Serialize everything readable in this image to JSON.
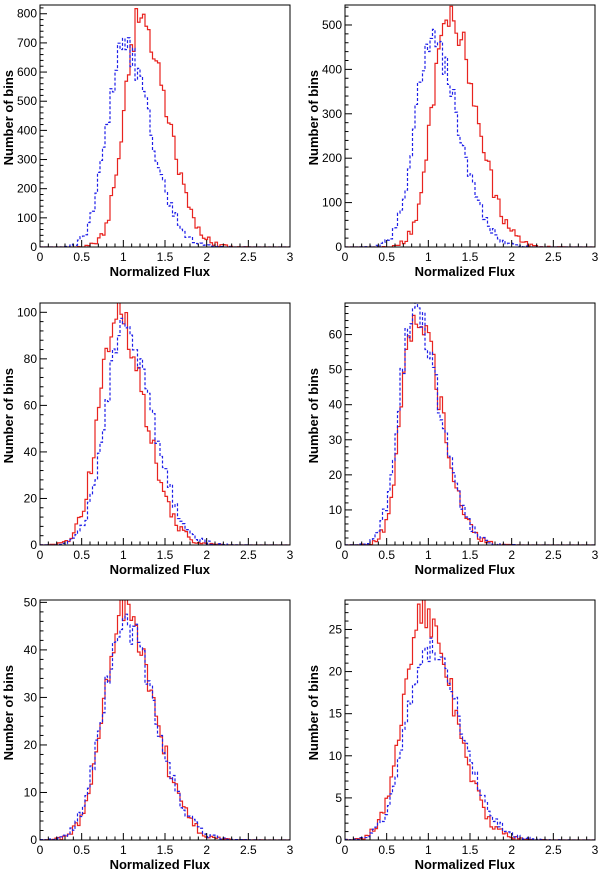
{
  "chart_data": [
    {
      "type": "bar",
      "title": "",
      "xlabel": "Normalized Flux",
      "ylabel": "Number of bins",
      "xlim": [
        0,
        3
      ],
      "ylim": [
        0,
        830
      ],
      "xticks": [
        0,
        0.5,
        1,
        1.5,
        2,
        2.5,
        3
      ],
      "xtick_labels": [
        "0",
        "0.5",
        "1",
        "1.5",
        "2",
        "2.5",
        "3"
      ],
      "yticks": [
        0,
        100,
        200,
        300,
        400,
        500,
        600,
        700,
        800
      ],
      "ytick_labels": [
        "0",
        "100",
        "200",
        "300",
        "400",
        "500",
        "600",
        "700",
        "800"
      ],
      "bin_width": 0.03,
      "series": [
        {
          "name": "solid",
          "color": "#e8231f",
          "dash": "",
          "peak": 1.2,
          "peakValue": 790,
          "sigma": 0.19,
          "tail": 0.35
        },
        {
          "name": "dashed",
          "color": "#1f1fe8",
          "dash": "3,2",
          "peak": 1.0,
          "peakValue": 680,
          "sigma": 0.2,
          "tail": 0.35
        }
      ]
    },
    {
      "type": "bar",
      "title": "",
      "xlabel": "Normalized Flux",
      "ylabel": "Number of bins",
      "xlim": [
        0,
        3
      ],
      "ylim": [
        0,
        545
      ],
      "xticks": [
        0,
        0.5,
        1,
        1.5,
        2,
        2.5,
        3
      ],
      "xtick_labels": [
        "0",
        "0.5",
        "1",
        "1.5",
        "2",
        "2.5",
        "3"
      ],
      "yticks": [
        0,
        100,
        200,
        300,
        400,
        500
      ],
      "ytick_labels": [
        "0",
        "100",
        "200",
        "300",
        "400",
        "500"
      ],
      "bin_width": 0.03,
      "series": [
        {
          "name": "solid",
          "color": "#e8231f",
          "dash": "",
          "peak": 1.25,
          "peakValue": 525,
          "sigma": 0.2,
          "tail": 0.35
        },
        {
          "name": "dashed",
          "color": "#1f1fe8",
          "dash": "3,2",
          "peak": 1.04,
          "peakValue": 465,
          "sigma": 0.2,
          "tail": 0.35
        }
      ]
    },
    {
      "type": "bar",
      "title": "",
      "xlabel": "Normalized Flux",
      "ylabel": "Number of bins",
      "xlim": [
        0,
        3
      ],
      "ylim": [
        0,
        104
      ],
      "xticks": [
        0,
        0.5,
        1,
        1.5,
        2,
        2.5,
        3
      ],
      "xtick_labels": [
        "0",
        "0.5",
        "1",
        "1.5",
        "2",
        "2.5",
        "3"
      ],
      "yticks": [
        0,
        20,
        40,
        60,
        80,
        100
      ],
      "ytick_labels": [
        "0",
        "20",
        "40",
        "60",
        "80",
        "100"
      ],
      "bin_width": 0.03,
      "series": [
        {
          "name": "solid",
          "color": "#e8231f",
          "dash": "",
          "peak": 0.92,
          "peakValue": 100,
          "sigma": 0.21,
          "tail": 0.35
        },
        {
          "name": "dashed",
          "color": "#1f1fe8",
          "dash": "3,2",
          "peak": 1.0,
          "peakValue": 92,
          "sigma": 0.22,
          "tail": 0.35
        }
      ]
    },
    {
      "type": "bar",
      "title": "",
      "xlabel": "Normalized Flux",
      "ylabel": "Number of bins",
      "xlim": [
        0,
        3
      ],
      "ylim": [
        0,
        69
      ],
      "xticks": [
        0,
        0.5,
        1,
        1.5,
        2,
        2.5,
        3
      ],
      "xtick_labels": [
        "0",
        "0.5",
        "1",
        "1.5",
        "2",
        "2.5",
        "3"
      ],
      "yticks": [
        0,
        10,
        20,
        30,
        40,
        50,
        60
      ],
      "ytick_labels": [
        "0",
        "10",
        "20",
        "30",
        "40",
        "50",
        "60"
      ],
      "bin_width": 0.03,
      "series": [
        {
          "name": "solid",
          "color": "#e8231f",
          "dash": "",
          "peak": 0.85,
          "peakValue": 66,
          "sigma": 0.17,
          "tail": 0.35
        },
        {
          "name": "dashed",
          "color": "#1f1fe8",
          "dash": "3,2",
          "peak": 0.83,
          "peakValue": 67,
          "sigma": 0.18,
          "tail": 0.35
        }
      ]
    },
    {
      "type": "bar",
      "title": "",
      "xlabel": "Normalized Flux",
      "ylabel": "Number of bins",
      "xlim": [
        0,
        3
      ],
      "ylim": [
        0,
        50.5
      ],
      "xticks": [
        0,
        0.5,
        1,
        1.5,
        2,
        2.5,
        3
      ],
      "xtick_labels": [
        "0",
        "0.5",
        "1",
        "1.5",
        "2",
        "2.5",
        "3"
      ],
      "yticks": [
        0,
        10,
        20,
        30,
        40,
        50
      ],
      "ytick_labels": [
        "0",
        "10",
        "20",
        "30",
        "40",
        "50"
      ],
      "bin_width": 0.03,
      "series": [
        {
          "name": "solid",
          "color": "#e8231f",
          "dash": "",
          "peak": 1.0,
          "peakValue": 48,
          "sigma": 0.24,
          "tail": 0.35
        },
        {
          "name": "dashed",
          "color": "#1f1fe8",
          "dash": "3,2",
          "peak": 1.0,
          "peakValue": 46,
          "sigma": 0.25,
          "tail": 0.35
        }
      ]
    },
    {
      "type": "bar",
      "title": "",
      "xlabel": "Normalized Flux",
      "ylabel": "Number of bins",
      "xlim": [
        0,
        3
      ],
      "ylim": [
        0,
        28.5
      ],
      "xticks": [
        0,
        0.5,
        1,
        1.5,
        2,
        2.5,
        3
      ],
      "xtick_labels": [
        "0",
        "0.5",
        "1",
        "1.5",
        "2",
        "2.5",
        "3"
      ],
      "yticks": [
        0,
        5,
        10,
        15,
        20,
        25
      ],
      "ytick_labels": [
        "0",
        "5",
        "10",
        "15",
        "20",
        "25"
      ],
      "bin_width": 0.03,
      "series": [
        {
          "name": "solid",
          "color": "#e8231f",
          "dash": "",
          "peak": 0.94,
          "peakValue": 27,
          "sigma": 0.24,
          "tail": 0.35
        },
        {
          "name": "dashed",
          "color": "#1f1fe8",
          "dash": "3,2",
          "peak": 1.0,
          "peakValue": 23,
          "sigma": 0.26,
          "tail": 0.35
        }
      ]
    }
  ]
}
